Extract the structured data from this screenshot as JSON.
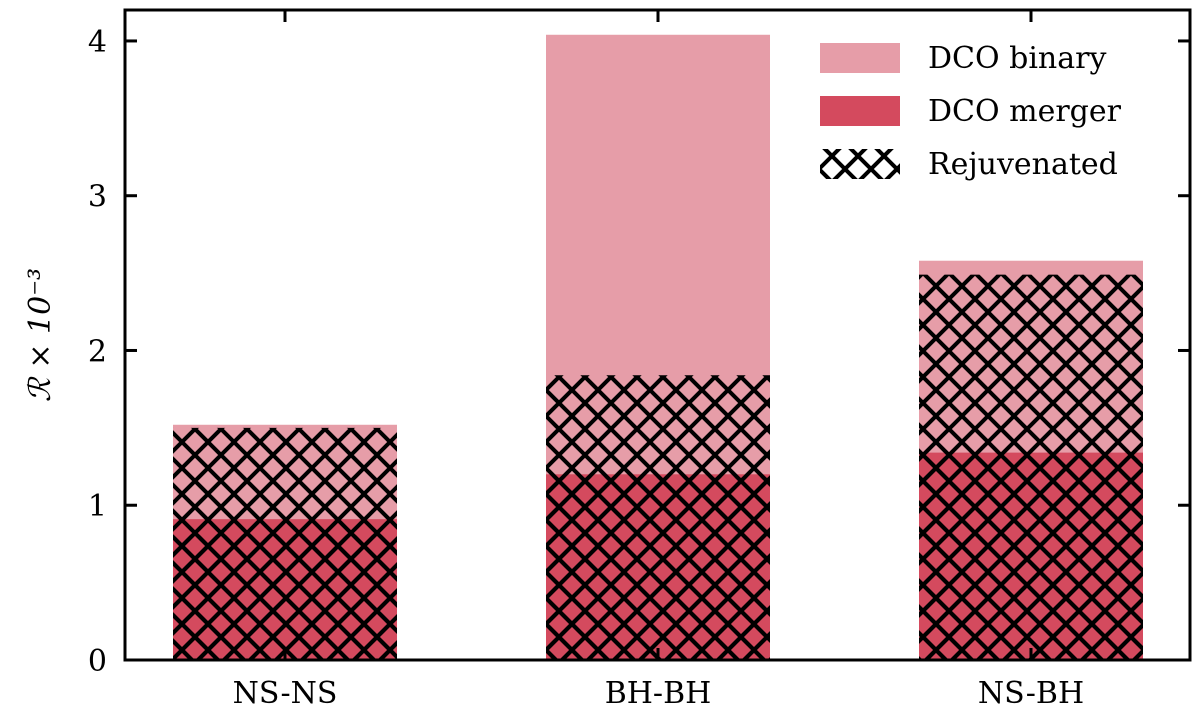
{
  "chart_data": {
    "type": "bar",
    "categories": [
      "NS-NS",
      "BH-BH",
      "NS-BH"
    ],
    "ylabel": "ℛ × 10⁻³",
    "ylim": [
      0,
      4.2
    ],
    "yticks": [
      "0",
      "1",
      "2",
      "3",
      "4"
    ],
    "grid": false,
    "legend": "top-right",
    "series": [
      {
        "name": "DCO binary",
        "color": "#e69da8",
        "values": [
          1.52,
          4.04,
          2.58
        ],
        "rejuvenated": [
          1.5,
          1.84,
          2.49
        ]
      },
      {
        "name": "DCO merger",
        "color": "#d44a5e",
        "values": [
          0.91,
          1.2,
          1.34
        ],
        "rejuvenated": [
          0.81,
          1.18,
          1.31
        ]
      }
    ],
    "hatch_legend": "Rejuvenated"
  }
}
